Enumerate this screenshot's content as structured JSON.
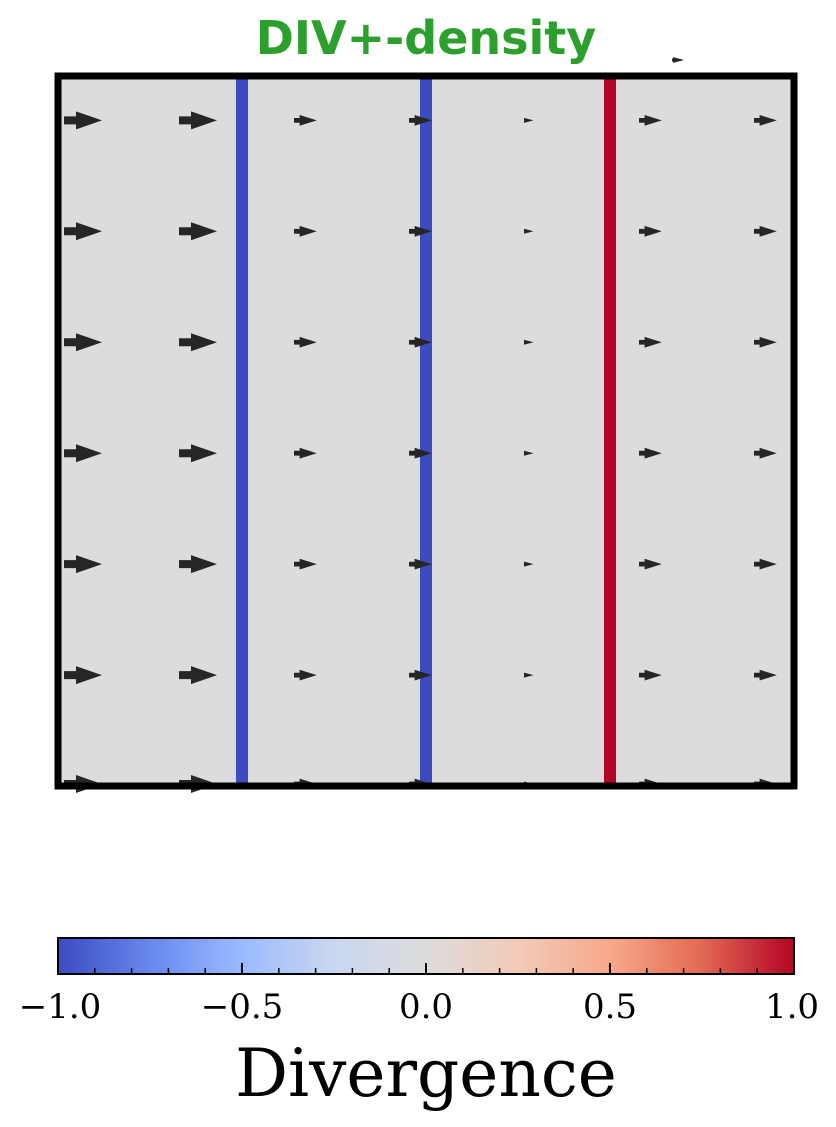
{
  "chart_data": {
    "type": "quiver",
    "title": "DIV+-density",
    "title_color": "#2ca02c",
    "background_color": "#dcdcdc",
    "x": [
      0,
      1,
      2,
      3,
      4,
      5,
      6
    ],
    "y": [
      0,
      1,
      2,
      3,
      4,
      5,
      6
    ],
    "u": [
      1.0,
      1.0,
      0.6,
      0.6,
      0.25,
      0.6,
      0.6
    ],
    "v": 0,
    "divergence_lines": [
      {
        "x": 1.6,
        "divergence": -1.0,
        "color": "#3b4cc0"
      },
      {
        "x": 3.2,
        "divergence": -1.0,
        "color": "#3b4cc0"
      },
      {
        "x": 4.8,
        "divergence": 1.0,
        "color": "#b40426"
      }
    ],
    "arrow_color": "#262626",
    "xlim": [
      0,
      6.4
    ],
    "ylim": [
      0,
      6.4
    ],
    "colorbar": {
      "label": "Divergence",
      "cmap": "coolwarm",
      "range": [
        -1.0,
        1.0
      ],
      "ticks": [
        -1.0,
        -0.5,
        0.0,
        0.5,
        1.0
      ],
      "tick_labels": [
        "−1.0",
        "−0.5",
        "0.0",
        "0.5",
        "1.0"
      ],
      "stops": [
        "#3b4cc0",
        "#6788ee",
        "#9abbff",
        "#c9d7f0",
        "#dddcdc",
        "#f2cbb7",
        "#f7a889",
        "#e26952",
        "#b40426"
      ]
    }
  }
}
